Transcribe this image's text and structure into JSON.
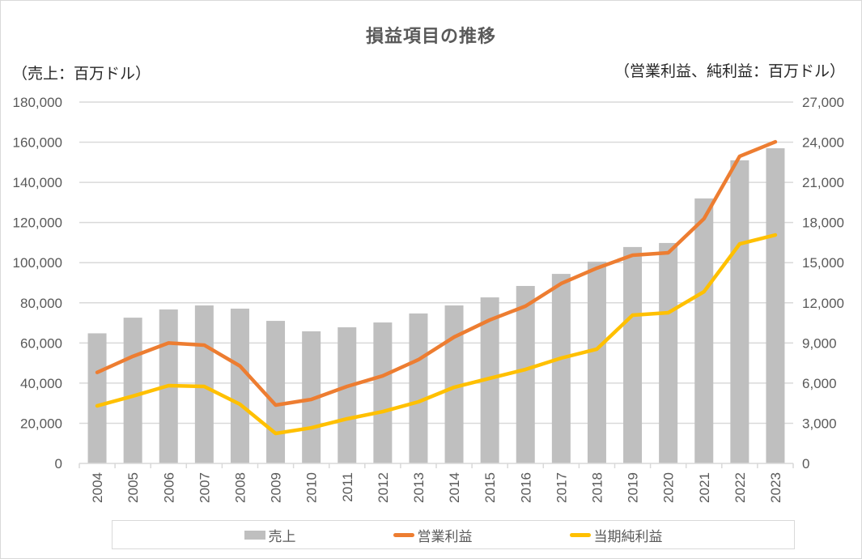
{
  "chart_data": {
    "type": "bar+line",
    "title": "損益項目の推移",
    "ylabel_left": "（売上：百万ドル）",
    "ylabel_right": "（営業利益、純利益：百万ドル）",
    "categories": [
      "2004",
      "2005",
      "2006",
      "2007",
      "2008",
      "2009",
      "2010",
      "2011",
      "2012",
      "2013",
      "2014",
      "2015",
      "2016",
      "2017",
      "2018",
      "2019",
      "2020",
      "2021",
      "2022",
      "2023"
    ],
    "ylim_left": [
      0,
      180000
    ],
    "ylim_right": [
      0,
      27000
    ],
    "yticks_left": [
      "0",
      "20,000",
      "40,000",
      "60,000",
      "80,000",
      "100,000",
      "120,000",
      "140,000",
      "160,000",
      "180,000"
    ],
    "yticks_right": [
      "0",
      "3,000",
      "6,000",
      "9,000",
      "12,000",
      "15,000",
      "18,000",
      "21,000",
      "24,000",
      "27,000"
    ],
    "grid": true,
    "legend_position": "bottom",
    "series": [
      {
        "name": "売上",
        "type": "bar",
        "axis": "left",
        "color": "#bfbfbf",
        "values": [
          64800,
          72600,
          76700,
          78700,
          77100,
          71000,
          65800,
          67800,
          70200,
          74700,
          78700,
          82700,
          88400,
          94400,
          100500,
          107800,
          109800,
          132000,
          151000,
          157000
        ]
      },
      {
        "name": "営業利益",
        "type": "line",
        "axis": "right",
        "color": "#ed7d31",
        "values": [
          6800,
          8000,
          9000,
          8840,
          7280,
          4360,
          4780,
          5750,
          6540,
          7750,
          9440,
          10720,
          11750,
          13440,
          14590,
          15560,
          15740,
          18280,
          22950,
          24030
        ]
      },
      {
        "name": "当期純利益",
        "type": "line",
        "axis": "right",
        "color": "#ffc000",
        "values": [
          4300,
          5030,
          5810,
          5750,
          4420,
          2240,
          2660,
          3330,
          3870,
          4600,
          5690,
          6360,
          7020,
          7870,
          8540,
          11080,
          11260,
          12830,
          16400,
          17070
        ]
      }
    ]
  }
}
